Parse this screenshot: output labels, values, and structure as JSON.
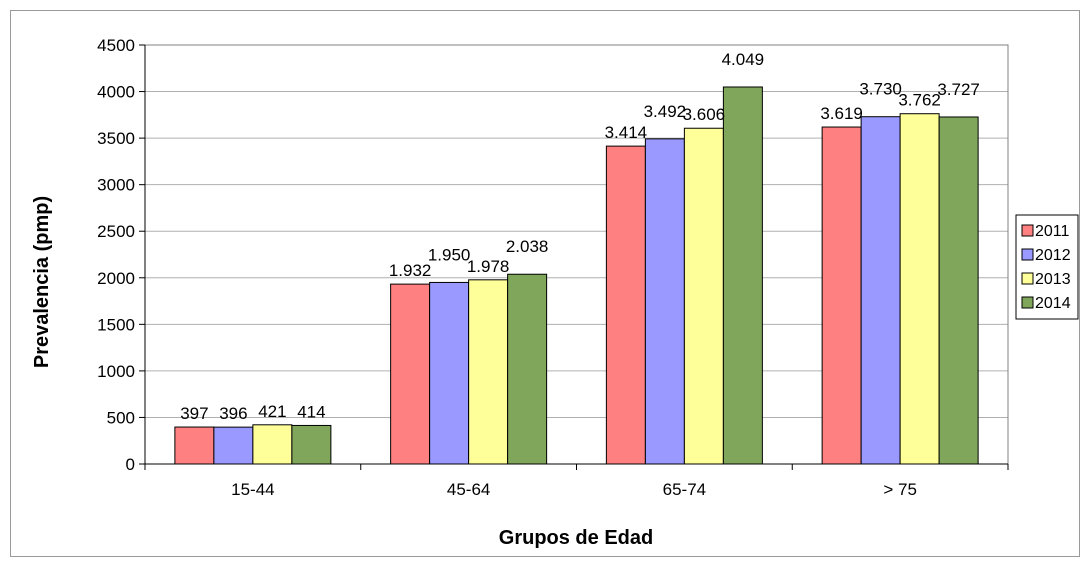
{
  "chart_data": {
    "type": "bar",
    "categories": [
      "15-44",
      "45-64",
      "65-74",
      "> 75"
    ],
    "series": [
      {
        "name": "2011",
        "values": [
          397,
          1932,
          3414,
          3619
        ],
        "labels": [
          "397",
          "1.932",
          "3.414",
          "3.619"
        ],
        "color": "#FF8080"
      },
      {
        "name": "2012",
        "values": [
          396,
          1950,
          3492,
          3730
        ],
        "labels": [
          "396",
          "1.950",
          "3.492",
          "3.730"
        ],
        "color": "#9999FF"
      },
      {
        "name": "2013",
        "values": [
          421,
          1978,
          3606,
          3762
        ],
        "labels": [
          "421",
          "1.978",
          "3.606",
          "3.762"
        ],
        "color": "#FFFF99"
      },
      {
        "name": "2014",
        "values": [
          414,
          2038,
          4049,
          3727
        ],
        "labels": [
          "414",
          "2.038",
          "4.049",
          "3.727"
        ],
        "color": "#7FA65A"
      }
    ],
    "xlabel": "Grupos de Edad",
    "ylabel": "Prevalencia (pmp)",
    "ylim": [
      0,
      4500
    ],
    "yticks": [
      "0",
      "500",
      "1000",
      "1500",
      "2000",
      "2500",
      "3000",
      "3500",
      "4000",
      "4500"
    ],
    "grid": true,
    "legend": "right"
  }
}
